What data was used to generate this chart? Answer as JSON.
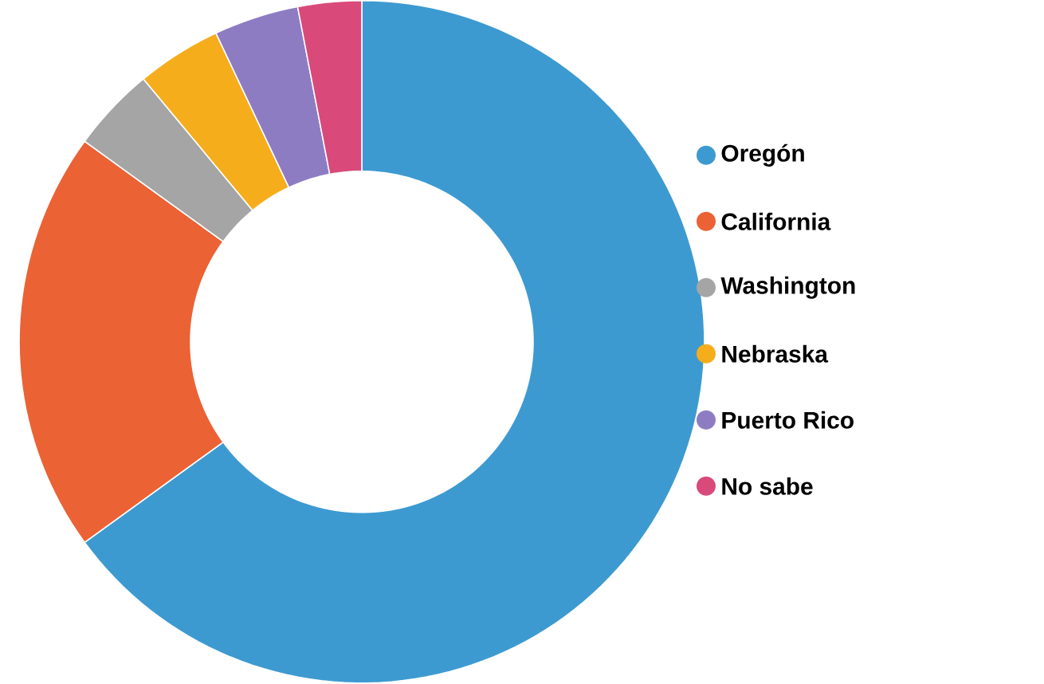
{
  "chart_data": {
    "type": "donut",
    "categories": [
      "Oregón",
      "California",
      "Washington",
      "Nebraska",
      "Puerto Rico",
      "No sabe"
    ],
    "values": [
      65,
      20,
      4,
      4,
      4,
      3
    ],
    "colors": [
      "#3d9ad1",
      "#eb6235",
      "#a5a5a5",
      "#f6ad1c",
      "#8e7cc3",
      "#d9497a"
    ],
    "legend": "right"
  }
}
